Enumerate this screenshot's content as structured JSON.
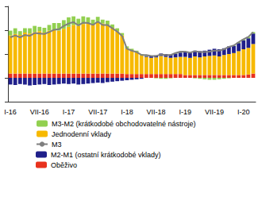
{
  "chart_data": {
    "type": "bar",
    "stacked": true,
    "grid": false,
    "tick_labels": "x",
    "legend": "bottom",
    "categories": [
      "I-16",
      null,
      null,
      null,
      null,
      null,
      "VII-16",
      null,
      null,
      null,
      null,
      null,
      "I-17",
      null,
      null,
      null,
      null,
      null,
      "VII-17",
      null,
      null,
      null,
      null,
      null,
      "I-18",
      null,
      null,
      null,
      null,
      null,
      "VII-18",
      null,
      null,
      null,
      null,
      null,
      "I-19",
      null,
      null,
      null,
      null,
      null,
      "VII-19",
      null,
      null,
      null,
      null,
      null,
      "I-20",
      null,
      null
    ],
    "ylim": [
      -5,
      15
    ],
    "yticks": [
      -5,
      0,
      5,
      10,
      15
    ],
    "series": [
      {
        "name": "Oběživo",
        "color": "#e8321e",
        "type": "bar",
        "values": [
          0.9,
          0.9,
          0.9,
          0.9,
          0.9,
          0.9,
          0.9,
          0.9,
          0.9,
          0.9,
          0.9,
          0.9,
          0.9,
          0.9,
          0.9,
          0.9,
          0.9,
          0.9,
          0.9,
          0.9,
          0.9,
          0.9,
          0.9,
          0.9,
          0.8,
          0.8,
          0.8,
          0.8,
          0.8,
          0.8,
          0.8,
          0.8,
          0.8,
          0.8,
          0.8,
          0.8,
          0.6,
          0.6,
          0.6,
          0.6,
          0.6,
          0.6,
          0.6,
          0.6,
          0.6,
          0.6,
          0.6,
          0.6,
          0.6,
          0.7,
          0.9
        ]
      },
      {
        "name": "Jednodenní vklady",
        "color": "#f7b900",
        "type": "bar",
        "values": [
          8.0,
          8.3,
          8.1,
          8.6,
          8.4,
          8.7,
          8.9,
          8.6,
          9.0,
          9.2,
          9.0,
          9.4,
          9.8,
          10.2,
          10.0,
          10.4,
          10.6,
          10.3,
          10.8,
          10.5,
          10.2,
          9.6,
          8.9,
          8.0,
          5.4,
          5.0,
          4.6,
          4.0,
          3.6,
          3.4,
          3.5,
          3.8,
          3.6,
          3.4,
          3.5,
          3.6,
          3.8,
          3.6,
          3.9,
          3.7,
          3.9,
          4.0,
          4.1,
          3.9,
          4.2,
          4.4,
          4.6,
          5.0,
          5.4,
          5.6,
          6.2
        ]
      },
      {
        "name": "M2-M1 (ostatní krátkodobé vklady)",
        "color": "#1f1f8a",
        "type": "bar",
        "values": [
          -1.4,
          -1.5,
          -1.3,
          -1.4,
          -1.6,
          -1.5,
          -1.4,
          -1.3,
          -1.5,
          -1.4,
          -1.3,
          -1.2,
          -1.3,
          -1.2,
          -1.4,
          -1.3,
          -1.2,
          -1.1,
          -1.0,
          -1.1,
          -0.9,
          -0.8,
          -0.7,
          -0.6,
          -0.5,
          -0.4,
          -0.3,
          -0.2,
          0.2,
          0.3,
          0.4,
          0.5,
          0.6,
          0.7,
          0.8,
          0.9,
          1.0,
          1.1,
          1.2,
          1.3,
          1.2,
          1.3,
          1.4,
          1.5,
          1.4,
          1.6,
          1.5,
          1.7,
          1.9,
          2.0,
          2.2
        ]
      },
      {
        "name": "M3-M2 (krátkodobé obchodovatelné nástroje)",
        "color": "#92d050",
        "type": "bar",
        "values": [
          1.0,
          1.2,
          0.8,
          0.9,
          1.1,
          1.3,
          0.9,
          1.0,
          1.2,
          1.4,
          1.6,
          1.8,
          2.0,
          1.8,
          1.5,
          1.6,
          1.2,
          1.0,
          1.1,
          0.8,
          0.9,
          0.7,
          0.6,
          0.5,
          0.4,
          0.3,
          0.3,
          0.2,
          0.2,
          0.1,
          -0.1,
          -0.2,
          -0.2,
          -0.1,
          0.1,
          0.2,
          0.1,
          0.0,
          -0.1,
          -0.2,
          -0.3,
          -0.4,
          -0.4,
          -0.3,
          -0.2,
          -0.1,
          0.1,
          0.2,
          0.2,
          0.3,
          0.3
        ]
      },
      {
        "name": "M3",
        "color": "#7f7f7f",
        "type": "line",
        "line_style": "solid",
        "values": [
          8.5,
          8.9,
          8.5,
          9.0,
          8.8,
          9.4,
          9.3,
          9.2,
          9.6,
          10.1,
          10.2,
          10.9,
          11.4,
          11.7,
          11.0,
          11.6,
          11.5,
          11.1,
          11.8,
          11.1,
          11.1,
          10.4,
          9.7,
          8.8,
          6.1,
          5.7,
          5.4,
          4.8,
          4.8,
          4.6,
          4.6,
          4.9,
          4.8,
          4.8,
          5.2,
          5.5,
          5.5,
          5.3,
          5.6,
          5.4,
          5.4,
          5.5,
          5.7,
          5.7,
          6.0,
          6.5,
          6.8,
          7.5,
          8.1,
          8.6,
          9.6
        ]
      }
    ]
  }
}
